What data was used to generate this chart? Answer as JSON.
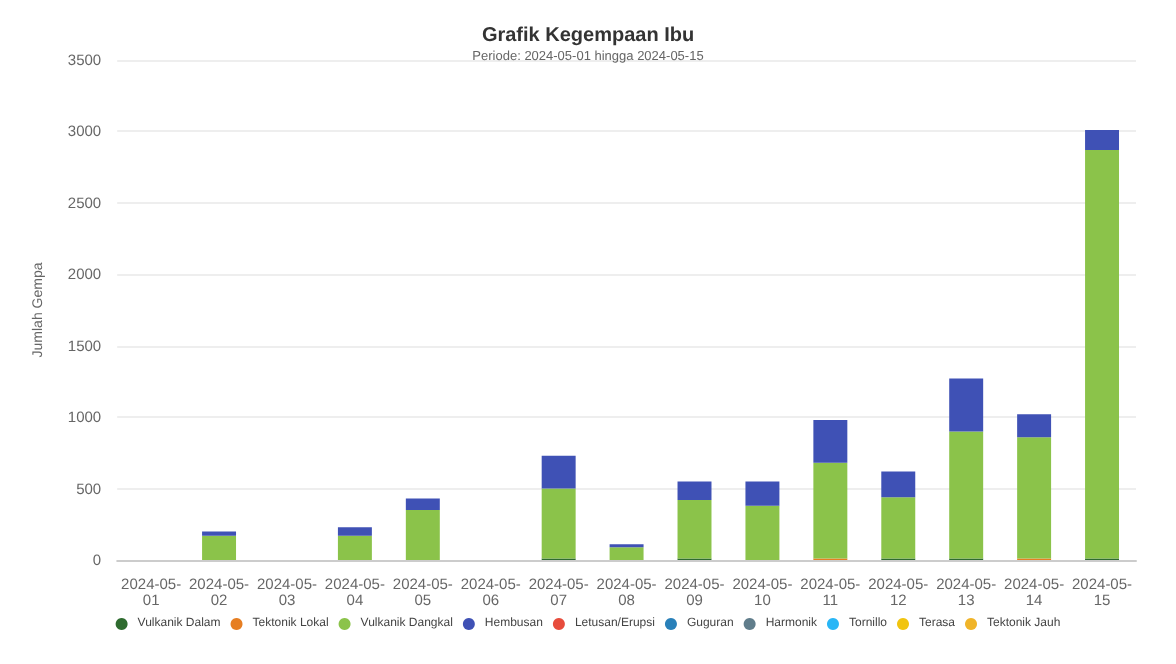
{
  "chart_data": {
    "type": "bar",
    "title": "Grafik Kegempaan Ibu",
    "subtitle": "Periode: 2024-05-01 hingga 2024-05-15",
    "ylabel": "Jumlah Gempa",
    "categories": [
      "2024-05-01",
      "2024-05-02",
      "2024-05-03",
      "2024-05-04",
      "2024-05-05",
      "2024-05-06",
      "2024-05-07",
      "2024-05-08",
      "2024-05-09",
      "2024-05-10",
      "2024-05-11",
      "2024-05-12",
      "2024-05-13",
      "2024-05-14",
      "2024-05-15"
    ],
    "stacked": true,
    "ylim": [
      0,
      3500
    ],
    "yticks": [
      0,
      500,
      1000,
      1500,
      2000,
      2500,
      3000,
      3500
    ],
    "grid": "y",
    "legend": "bottom",
    "series": [
      {
        "name": "Vulkanik Dalam",
        "color": "#2e6b2f",
        "values": [
          0,
          0,
          0,
          0,
          0,
          0,
          10,
          0,
          10,
          0,
          0,
          10,
          10,
          0,
          10
        ]
      },
      {
        "name": "Tektonik Lokal",
        "color": "#e67e22",
        "values": [
          0,
          0,
          0,
          0,
          0,
          0,
          0,
          0,
          0,
          0,
          10,
          0,
          0,
          10,
          0
        ]
      },
      {
        "name": "Vulkanik Dangkal",
        "color": "#8bc34a",
        "values": [
          0,
          170,
          0,
          170,
          350,
          0,
          490,
          90,
          410,
          380,
          670,
          430,
          890,
          850,
          2860
        ]
      },
      {
        "name": "Hembusan",
        "color": "#3f51b5",
        "values": [
          0,
          30,
          0,
          60,
          80,
          0,
          230,
          20,
          130,
          170,
          300,
          180,
          370,
          160,
          140
        ]
      },
      {
        "name": "Letusan/Erupsi",
        "color": "#e74c3c",
        "values": [
          0,
          0,
          0,
          0,
          0,
          0,
          0,
          0,
          0,
          0,
          0,
          0,
          0,
          0,
          0
        ]
      },
      {
        "name": "Guguran",
        "color": "#2980b9",
        "values": [
          0,
          0,
          0,
          0,
          0,
          0,
          0,
          0,
          0,
          0,
          0,
          0,
          0,
          0,
          0
        ]
      },
      {
        "name": "Harmonik",
        "color": "#607d8b",
        "values": [
          0,
          0,
          0,
          0,
          0,
          0,
          0,
          0,
          0,
          0,
          0,
          0,
          0,
          0,
          0
        ]
      },
      {
        "name": "Tornillo",
        "color": "#29b6f6",
        "values": [
          0,
          0,
          0,
          0,
          0,
          0,
          0,
          0,
          0,
          0,
          0,
          0,
          0,
          0,
          0
        ]
      },
      {
        "name": "Terasa",
        "color": "#f1c40f",
        "values": [
          0,
          0,
          0,
          0,
          0,
          0,
          0,
          0,
          0,
          0,
          0,
          0,
          0,
          0,
          0
        ]
      },
      {
        "name": "Tektonik Jauh",
        "color": "#f0b429",
        "values": [
          0,
          0,
          0,
          0,
          0,
          0,
          0,
          0,
          0,
          0,
          0,
          0,
          0,
          0,
          0
        ]
      }
    ]
  }
}
